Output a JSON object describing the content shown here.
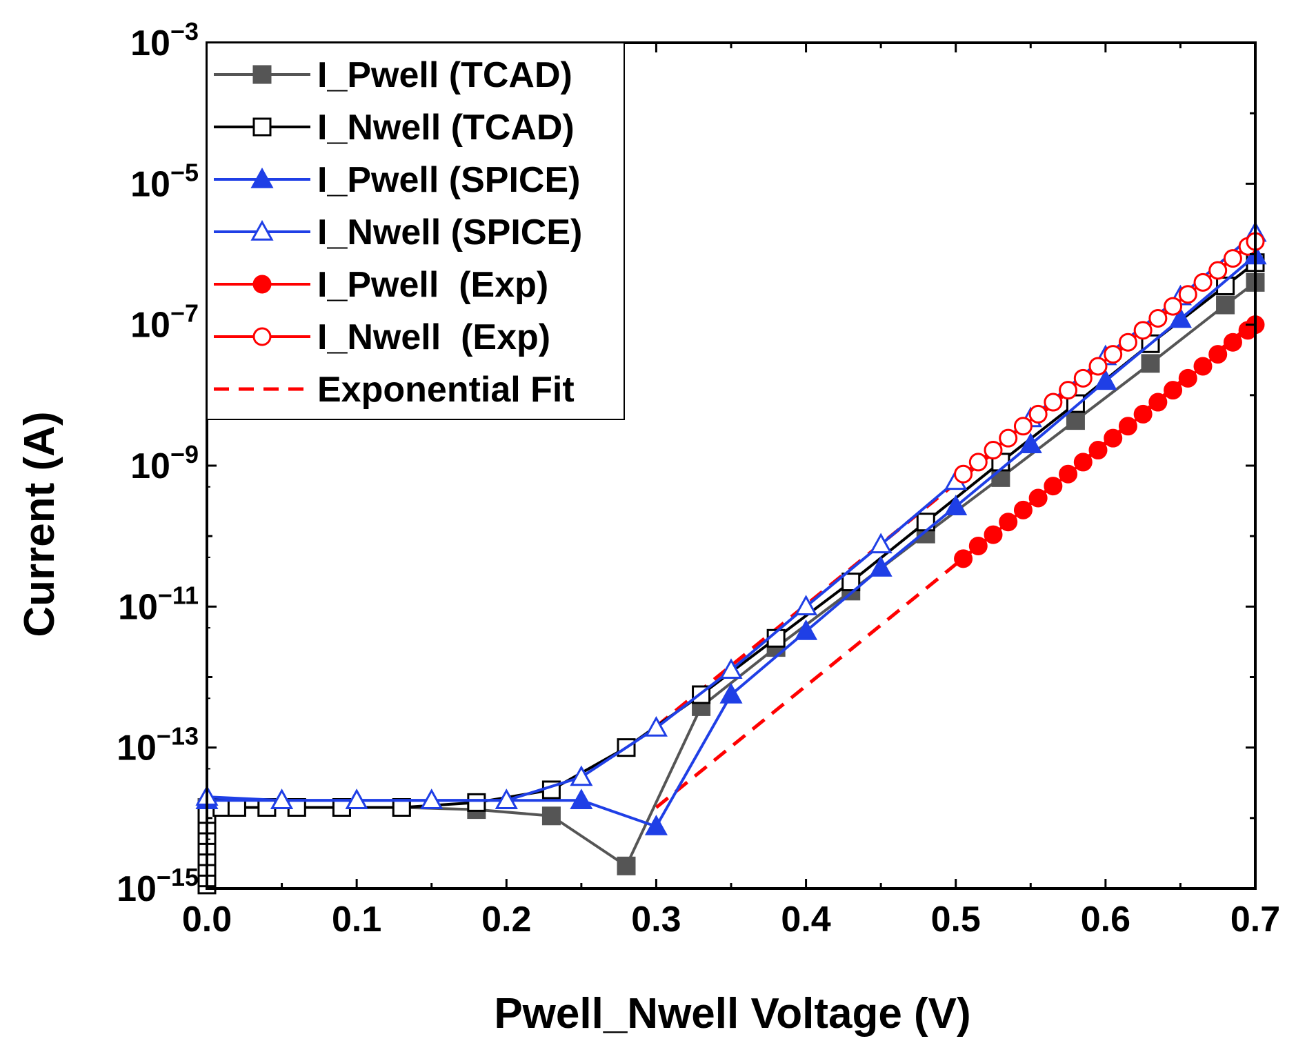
{
  "chart_data": {
    "type": "line",
    "xlabel": "Pwell_Nwell Voltage (V)",
    "ylabel": "Current (A)",
    "xlim": [
      0.0,
      0.7
    ],
    "ylim_log10": [
      -15,
      -3
    ],
    "y_scale": "log",
    "x_ticks": [
      0.0,
      0.1,
      0.2,
      0.3,
      0.4,
      0.5,
      0.6,
      0.7
    ],
    "x_tick_labels": [
      "0.0",
      "0.1",
      "0.2",
      "0.3",
      "0.4",
      "0.5",
      "0.6",
      "0.7"
    ],
    "y_ticks": [
      {
        "exp": -3,
        "base": "10",
        "sup": "−3"
      },
      {
        "exp": -5,
        "base": "10",
        "sup": "−5"
      },
      {
        "exp": -7,
        "base": "10",
        "sup": "−7"
      },
      {
        "exp": -9,
        "base": "10",
        "sup": "−9"
      },
      {
        "exp": -11,
        "base": "10",
        "sup": "−11"
      },
      {
        "exp": -13,
        "base": "10",
        "sup": "−13"
      },
      {
        "exp": -15,
        "base": "10",
        "sup": "−15"
      }
    ],
    "legend_position": "top-left",
    "series": [
      {
        "name": "I_Pwell (TCAD)",
        "color": "#555555",
        "marker": "square-filled",
        "line": "solid",
        "x": [
          0.0,
          0.02,
          0.04,
          0.06,
          0.09,
          0.13,
          0.18,
          0.23,
          0.28,
          0.33,
          0.38,
          0.43,
          0.48,
          0.53,
          0.58,
          0.63,
          0.68,
          0.7
        ],
        "y_log10": [
          -13.85,
          -13.85,
          -13.85,
          -13.85,
          -13.85,
          -13.85,
          -13.88,
          -13.97,
          -14.68,
          -12.42,
          -11.58,
          -10.78,
          -9.97,
          -9.17,
          -8.36,
          -7.55,
          -6.72,
          -6.4
        ]
      },
      {
        "name": "I_Nwell (TCAD)",
        "color": "#000000",
        "marker": "square-open",
        "line": "solid",
        "x": [
          0.0,
          0.0,
          0.0,
          0.0,
          0.0,
          0.0,
          0.0,
          0.0,
          0.01,
          0.02,
          0.04,
          0.06,
          0.09,
          0.13,
          0.18,
          0.23,
          0.28,
          0.33,
          0.38,
          0.43,
          0.48,
          0.53,
          0.58,
          0.63,
          0.68,
          0.7
        ],
        "y_log10": [
          -14.95,
          -14.85,
          -14.7,
          -14.55,
          -14.4,
          -14.25,
          -14.1,
          -13.95,
          -13.85,
          -13.85,
          -13.85,
          -13.85,
          -13.85,
          -13.85,
          -13.78,
          -13.6,
          -13.0,
          -12.25,
          -11.45,
          -10.65,
          -9.8,
          -8.95,
          -8.12,
          -7.27,
          -6.45,
          -6.12
        ]
      },
      {
        "name": "I_Pwell (SPICE)",
        "color": "#1f3fe6",
        "marker": "triangle-filled",
        "line": "solid",
        "x": [
          0.0,
          0.05,
          0.1,
          0.15,
          0.2,
          0.25,
          0.3,
          0.35,
          0.4,
          0.45,
          0.5,
          0.55,
          0.6,
          0.65,
          0.7
        ],
        "y_log10": [
          -13.75,
          -13.75,
          -13.75,
          -13.75,
          -13.75,
          -13.75,
          -14.12,
          -12.25,
          -11.35,
          -10.45,
          -9.58,
          -8.7,
          -7.8,
          -6.92,
          -6.02
        ]
      },
      {
        "name": "I_Nwell (SPICE)",
        "color": "#1f3fe6",
        "marker": "triangle-open",
        "line": "solid",
        "x": [
          0.0,
          0.05,
          0.1,
          0.15,
          0.2,
          0.25,
          0.3,
          0.35,
          0.4,
          0.45,
          0.5,
          0.55,
          0.6,
          0.65,
          0.7
        ],
        "y_log10": [
          -13.7,
          -13.75,
          -13.75,
          -13.75,
          -13.75,
          -13.42,
          -12.72,
          -11.9,
          -11.0,
          -10.12,
          -9.22,
          -8.33,
          -7.45,
          -6.6,
          -5.7
        ]
      },
      {
        "name": "I_Pwell  (Exp)",
        "color": "#ff0000",
        "marker": "circle-filled",
        "line": "solid",
        "x": [
          0.505,
          0.515,
          0.525,
          0.535,
          0.545,
          0.555,
          0.565,
          0.575,
          0.585,
          0.595,
          0.605,
          0.615,
          0.625,
          0.635,
          0.645,
          0.655,
          0.665,
          0.675,
          0.685,
          0.695,
          0.7
        ],
        "y_log10": [
          -10.32,
          -10.14,
          -9.98,
          -9.8,
          -9.63,
          -9.46,
          -9.29,
          -9.12,
          -8.95,
          -8.78,
          -8.61,
          -8.44,
          -8.27,
          -8.1,
          -7.93,
          -7.76,
          -7.59,
          -7.42,
          -7.25,
          -7.08,
          -7.0
        ]
      },
      {
        "name": "I_Nwell  (Exp)",
        "color": "#ff0000",
        "marker": "circle-open",
        "line": "solid",
        "x": [
          0.505,
          0.515,
          0.525,
          0.535,
          0.545,
          0.555,
          0.565,
          0.575,
          0.585,
          0.595,
          0.605,
          0.615,
          0.625,
          0.635,
          0.645,
          0.655,
          0.665,
          0.675,
          0.685,
          0.695,
          0.7
        ],
        "y_log10": [
          -9.12,
          -8.95,
          -8.78,
          -8.61,
          -8.44,
          -8.27,
          -8.1,
          -7.93,
          -7.76,
          -7.59,
          -7.42,
          -7.25,
          -7.08,
          -6.91,
          -6.74,
          -6.57,
          -6.4,
          -6.23,
          -6.06,
          -5.89,
          -5.82
        ]
      },
      {
        "name": "Exponential Fit",
        "color": "#ff0000",
        "marker": "none",
        "line": "dashed",
        "segments": [
          {
            "x": [
              0.3,
              0.7
            ],
            "y_log10": [
              -13.85,
              -6.95
            ]
          },
          {
            "x": [
              0.3,
              0.7
            ],
            "y_log10": [
              -12.7,
              -5.8
            ]
          }
        ]
      }
    ]
  }
}
